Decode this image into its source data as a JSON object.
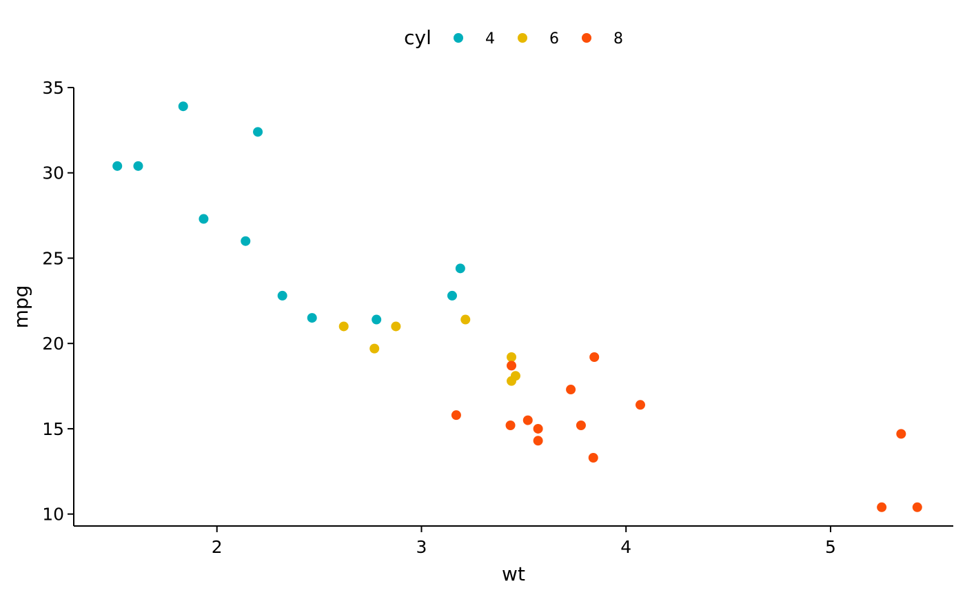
{
  "chart_data": {
    "type": "scatter",
    "xlabel": "wt",
    "ylabel": "mpg",
    "xlim": [
      1.3,
      5.6
    ],
    "ylim": [
      9.3,
      35.0
    ],
    "x_ticks": [
      2,
      3,
      4,
      5
    ],
    "y_ticks": [
      10,
      15,
      20,
      25,
      30,
      35
    ],
    "grid": false,
    "legend": {
      "title": "cyl",
      "position": "top"
    },
    "series": [
      {
        "name": "4",
        "color": "#00AFBB",
        "points": [
          {
            "x": 1.513,
            "y": 30.4
          },
          {
            "x": 1.615,
            "y": 30.4
          },
          {
            "x": 1.835,
            "y": 33.9
          },
          {
            "x": 1.935,
            "y": 27.3
          },
          {
            "x": 2.14,
            "y": 26.0
          },
          {
            "x": 2.2,
            "y": 32.4
          },
          {
            "x": 2.32,
            "y": 22.8
          },
          {
            "x": 2.465,
            "y": 21.5
          },
          {
            "x": 2.78,
            "y": 21.4
          },
          {
            "x": 3.15,
            "y": 22.8
          },
          {
            "x": 3.19,
            "y": 24.4
          }
        ]
      },
      {
        "name": "6",
        "color": "#E7B800",
        "points": [
          {
            "x": 2.62,
            "y": 21.0
          },
          {
            "x": 2.77,
            "y": 19.7
          },
          {
            "x": 2.875,
            "y": 21.0
          },
          {
            "x": 3.215,
            "y": 21.4
          },
          {
            "x": 3.44,
            "y": 19.2
          },
          {
            "x": 3.44,
            "y": 17.8
          },
          {
            "x": 3.46,
            "y": 18.1
          }
        ]
      },
      {
        "name": "8",
        "color": "#FC4E07",
        "points": [
          {
            "x": 3.17,
            "y": 15.8
          },
          {
            "x": 3.435,
            "y": 15.2
          },
          {
            "x": 3.44,
            "y": 18.7
          },
          {
            "x": 3.52,
            "y": 15.5
          },
          {
            "x": 3.57,
            "y": 15.0
          },
          {
            "x": 3.57,
            "y": 14.3
          },
          {
            "x": 3.73,
            "y": 17.3
          },
          {
            "x": 3.78,
            "y": 15.2
          },
          {
            "x": 3.84,
            "y": 13.3
          },
          {
            "x": 3.845,
            "y": 19.2
          },
          {
            "x": 4.07,
            "y": 16.4
          },
          {
            "x": 5.25,
            "y": 10.4
          },
          {
            "x": 5.345,
            "y": 14.7
          },
          {
            "x": 5.424,
            "y": 10.4
          }
        ]
      }
    ]
  }
}
